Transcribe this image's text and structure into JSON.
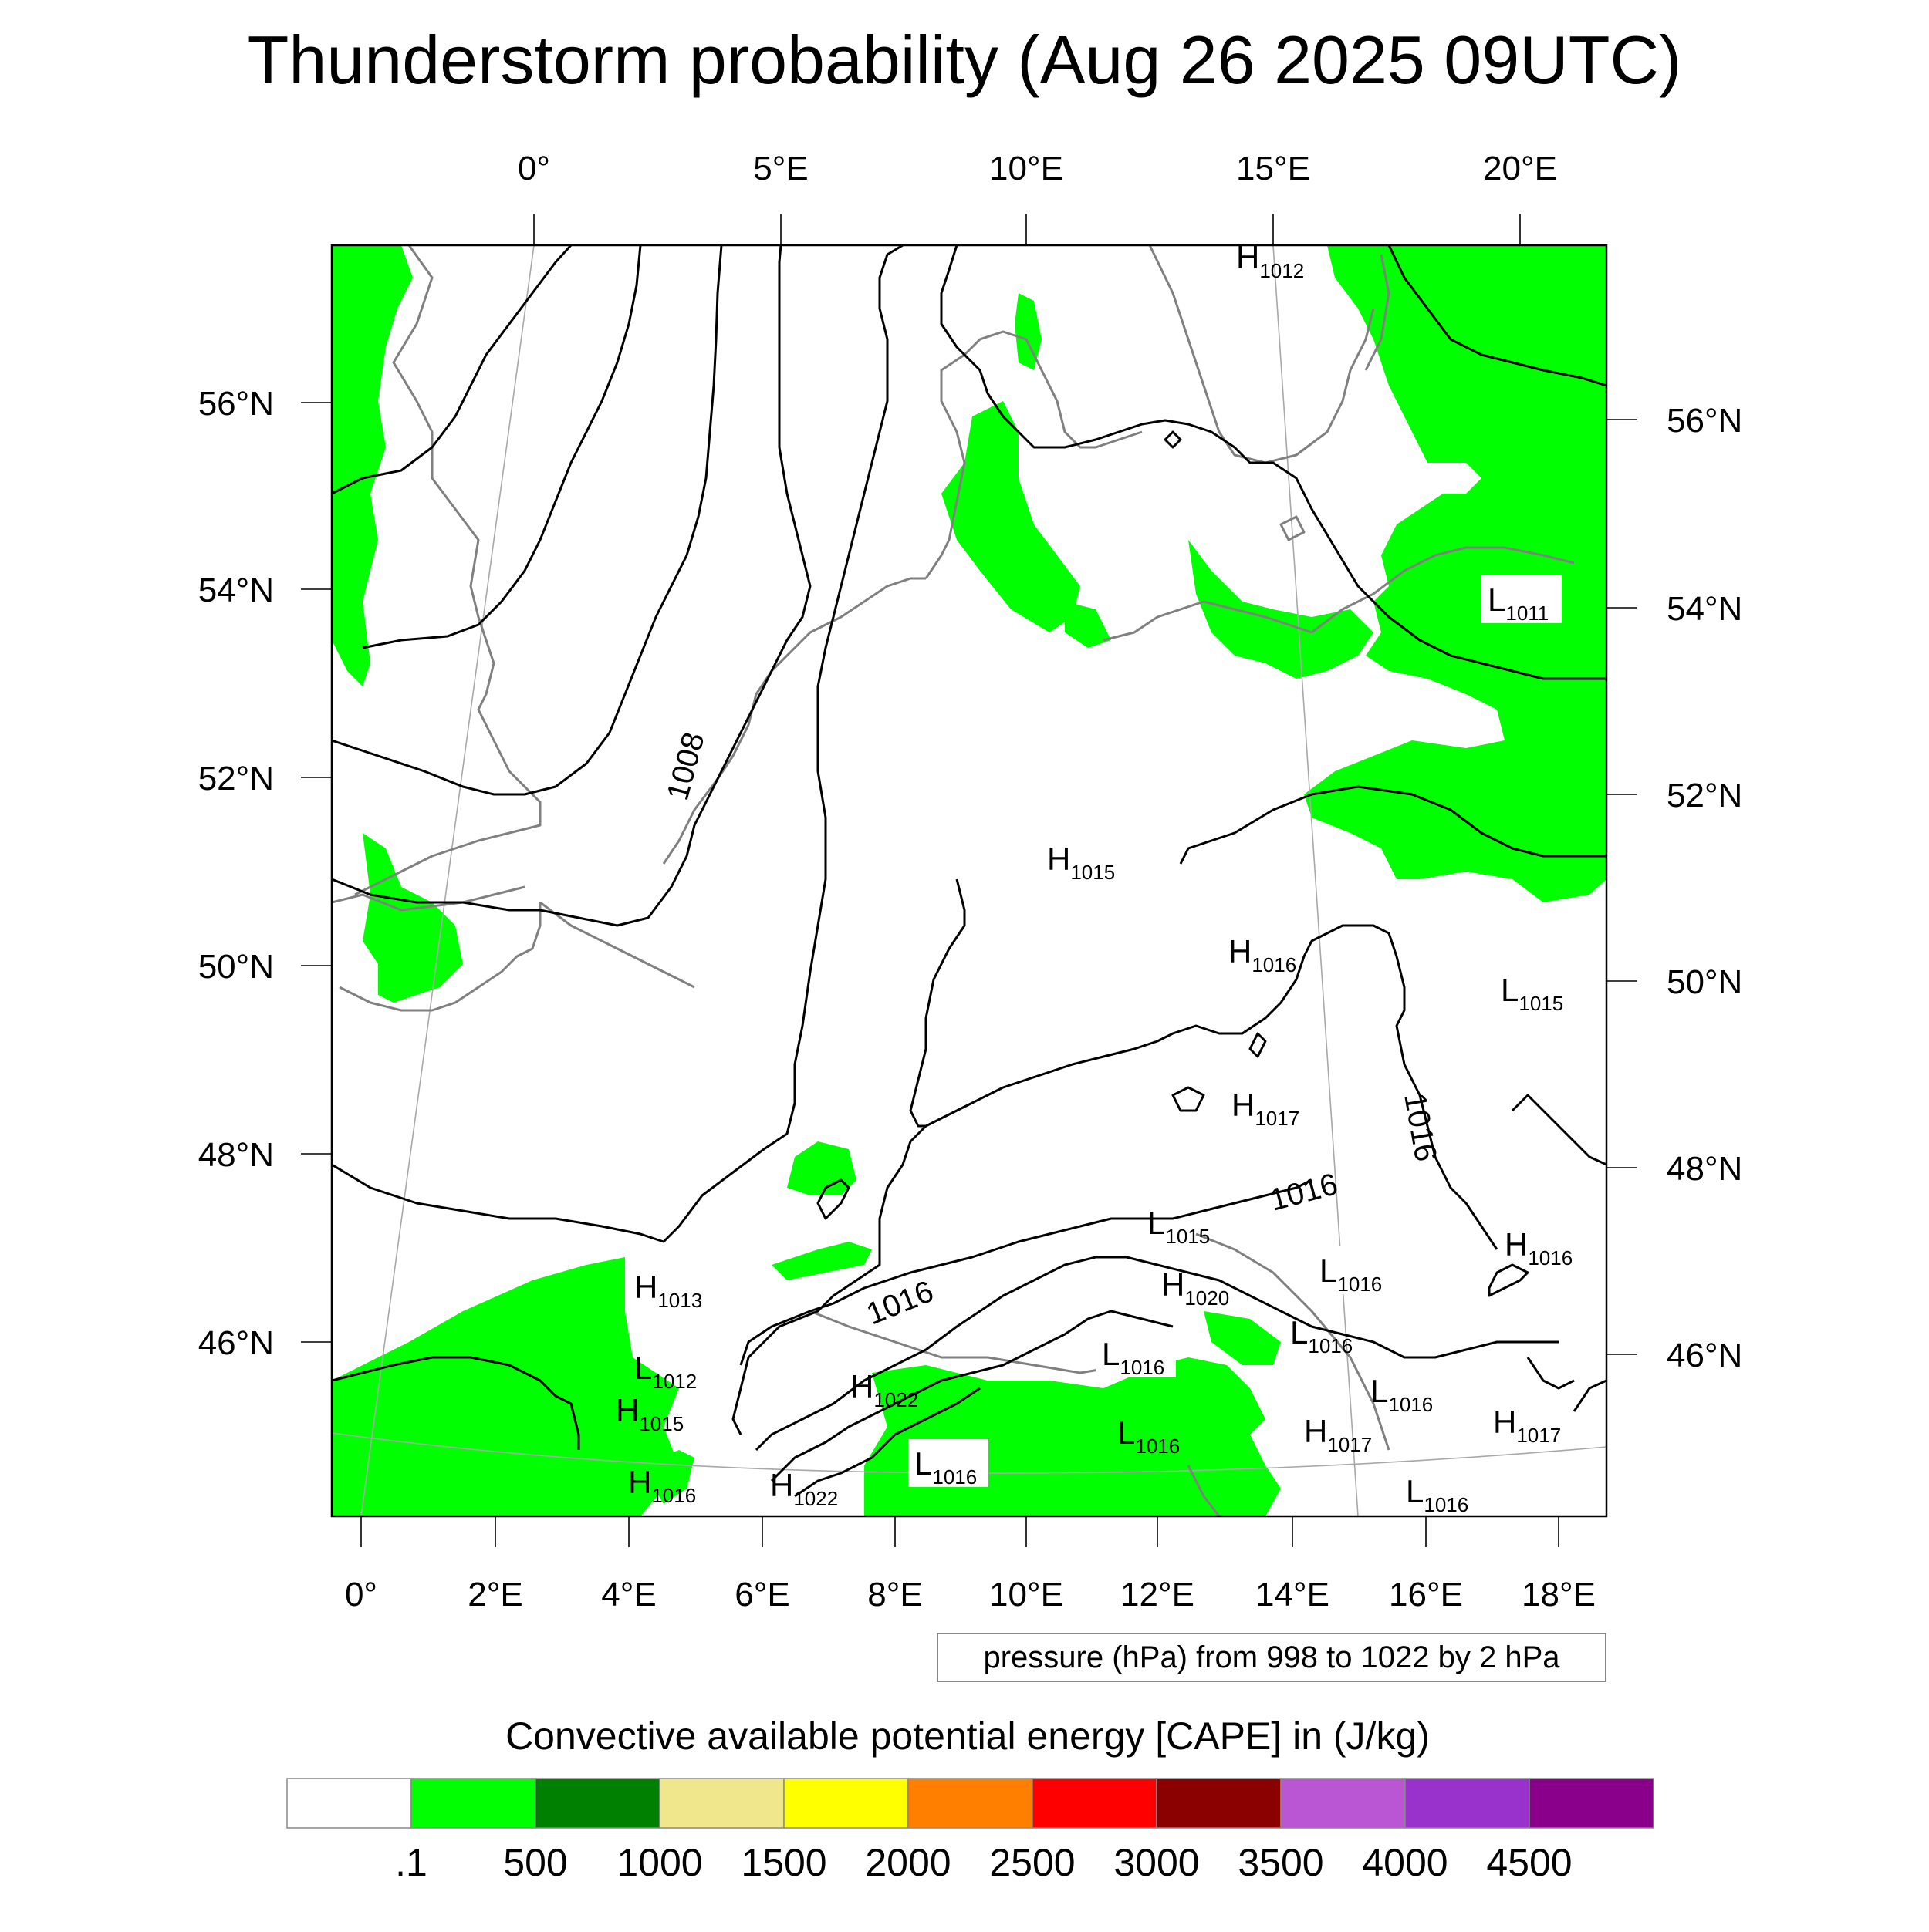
{
  "title": "Thunderstorm probability (Aug 26 2025 09UTC)",
  "axes": {
    "top_lon_labels": [
      "0°",
      "5°E",
      "10°E",
      "15°E",
      "20°E"
    ],
    "bottom_lon_labels": [
      "0°",
      "2°E",
      "4°E",
      "6°E",
      "8°E",
      "10°E",
      "12°E",
      "14°E",
      "16°E",
      "18°E"
    ],
    "left_lat_labels": [
      "56°N",
      "54°N",
      "52°N",
      "50°N",
      "48°N",
      "46°N"
    ],
    "right_lat_labels": [
      "56°N",
      "54°N",
      "52°N",
      "50°N",
      "48°N",
      "46°N"
    ]
  },
  "contour_note": "pressure (hPa) from 998 to 1022 by 2 hPa",
  "contour_labels": [
    {
      "text": "1008"
    },
    {
      "text": "1016"
    },
    {
      "text": "1016"
    },
    {
      "text": "1016"
    }
  ],
  "pressure_centers": [
    {
      "type": "H",
      "value": "1012"
    },
    {
      "type": "H",
      "value": "1015"
    },
    {
      "type": "H",
      "value": "1016"
    },
    {
      "type": "L",
      "value": "1011"
    },
    {
      "type": "L",
      "value": "1015"
    },
    {
      "type": "H",
      "value": "1017"
    },
    {
      "type": "L",
      "value": "1015"
    },
    {
      "type": "H",
      "value": "1013"
    },
    {
      "type": "L",
      "value": "1012"
    },
    {
      "type": "H",
      "value": "1015"
    },
    {
      "type": "H",
      "value": "1016"
    },
    {
      "type": "H",
      "value": "1022"
    },
    {
      "type": "H",
      "value": "1022"
    },
    {
      "type": "L",
      "value": "1016"
    },
    {
      "type": "H",
      "value": "1020"
    },
    {
      "type": "L",
      "value": "1016"
    },
    {
      "type": "L",
      "value": "1016"
    },
    {
      "type": "L",
      "value": "1016"
    },
    {
      "type": "L",
      "value": "1016"
    },
    {
      "type": "H",
      "value": "1016"
    },
    {
      "type": "H",
      "value": "1017"
    },
    {
      "type": "L",
      "value": "1016"
    },
    {
      "type": "H",
      "value": "1017"
    },
    {
      "type": "L",
      "value": "1016"
    }
  ],
  "colorbar": {
    "title": "Convective available potential energy [CAPE] in (J/kg)",
    "colors": [
      "#ffffff",
      "#00ff00",
      "#008000",
      "#f0e68c",
      "#ffff00",
      "#ff8000",
      "#ff0000",
      "#8b0000",
      "#ba55d3",
      "#9932cc",
      "#8b008b"
    ],
    "labels": [
      ".1",
      "500",
      "1000",
      "1500",
      "2000",
      "2500",
      "3000",
      "3500",
      "4000",
      "4500"
    ]
  },
  "colors": {
    "cape_green": "#00ff00",
    "coastline": "#808080",
    "isobar": "#000000"
  }
}
